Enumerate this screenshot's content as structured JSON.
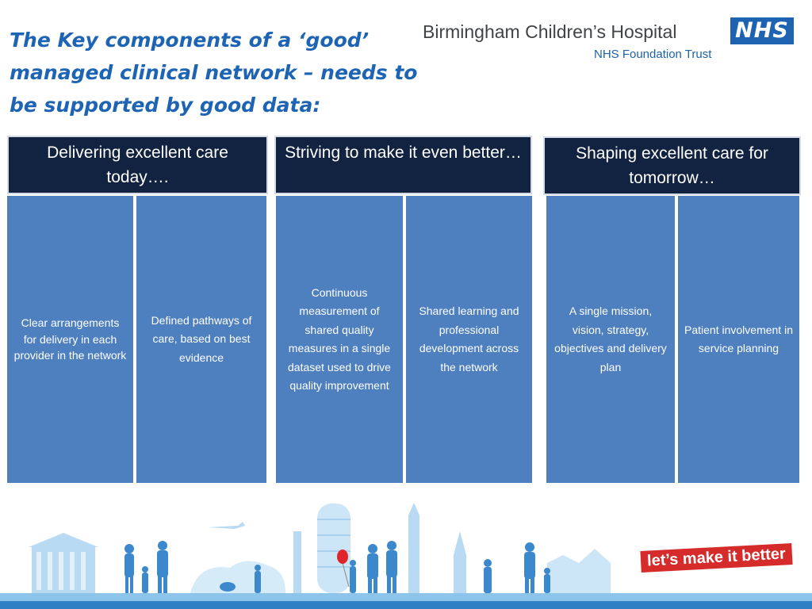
{
  "title": "The Key components of a ‘good’ managed clinical network – needs to be supported by good data:",
  "branding": {
    "hospital_name": "Birmingham Children’s Hospital",
    "trust_name": "NHS Foundation Trust",
    "nhs_logo_text": "NHS",
    "slogan": "let’s make it better"
  },
  "sections": [
    {
      "header": "Delivering excellent care today….",
      "items": [
        "Clear arrangements for delivery in each provider in the network",
        "Defined pathways of care, based on best evidence"
      ]
    },
    {
      "header": "Striving to make it even better…",
      "items": [
        "Continuous measurement of shared quality measures in a single dataset used to drive quality improvement",
        "Shared learning and professional development across the network"
      ]
    },
    {
      "header": "Shaping excellent care for tomorrow…",
      "items": [
        "A single mission, vision, strategy, objectives and delivery plan",
        "Patient involvement in service planning"
      ]
    }
  ],
  "colors": {
    "title": "#1e64b4",
    "header_bg": "#112340",
    "column_bg": "#4e7fbe",
    "nhs_blue": "#1d63b1",
    "slogan_red": "#d52b2b"
  }
}
